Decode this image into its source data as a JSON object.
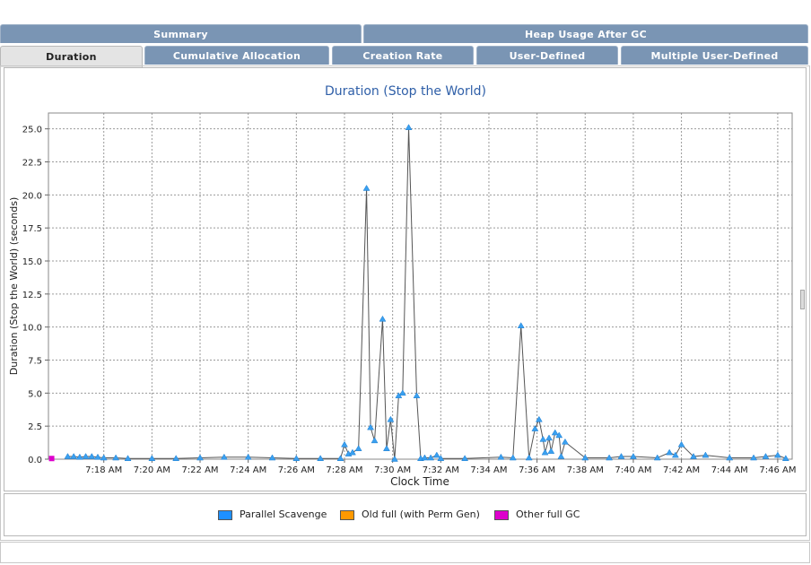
{
  "tabs_row1": [
    {
      "label": "Summary",
      "active": false
    },
    {
      "label": "Heap Usage After GC",
      "active": false
    }
  ],
  "tabs_row2": [
    {
      "label": "Duration",
      "active": true
    },
    {
      "label": "Cumulative Allocation",
      "active": false
    },
    {
      "label": "Creation Rate",
      "active": false
    },
    {
      "label": "User-Defined",
      "active": false
    },
    {
      "label": "Multiple User-Defined",
      "active": false
    }
  ],
  "legend": [
    {
      "label": "Parallel Scavenge",
      "color": "#1e90ff"
    },
    {
      "label": "Old full (with Perm Gen)",
      "color": "#ff9900"
    },
    {
      "label": "Other full GC",
      "color": "#dd00cc"
    }
  ],
  "chart_data": {
    "type": "line",
    "title": "Duration (Stop the World)",
    "xlabel": "Clock Time",
    "ylabel": "Duration (Stop the World)  (seconds)",
    "ylim": [
      0,
      26.2
    ],
    "xlim_minutes": [
      435.7,
      466.6
    ],
    "grid": true,
    "legend_position": "bottom",
    "xticks": [
      "7:18 AM",
      "7:20 AM",
      "7:22 AM",
      "7:24 AM",
      "7:26 AM",
      "7:28 AM",
      "7:30 AM",
      "7:32 AM",
      "7:34 AM",
      "7:36 AM",
      "7:38 AM",
      "7:40 AM",
      "7:42 AM",
      "7:44 AM",
      "7:46 AM"
    ],
    "yticks": [
      "0.0",
      "2.5",
      "5.0",
      "7.5",
      "10.0",
      "12.5",
      "15.0",
      "17.5",
      "20.0",
      "22.5",
      "25.0"
    ],
    "series": [
      {
        "name": "Parallel Scavenge",
        "color": "#1e90ff",
        "x": [
          "7:16:30",
          "7:16:45",
          "7:17:00",
          "7:17:15",
          "7:17:30",
          "7:17:45",
          "7:18:00",
          "7:18:30",
          "7:19:00",
          "7:20:00",
          "7:21:00",
          "7:22:00",
          "7:23:00",
          "7:24:00",
          "7:25:00",
          "7:26:00",
          "7:27:00",
          "7:27:50",
          "7:28:00",
          "7:28:10",
          "7:28:20",
          "7:28:35",
          "7:28:55",
          "7:29:05",
          "7:29:15",
          "7:29:35",
          "7:29:45",
          "7:29:55",
          "7:30:05",
          "7:30:15",
          "7:30:25",
          "7:30:40",
          "7:31:00",
          "7:31:10",
          "7:31:20",
          "7:31:35",
          "7:31:50",
          "7:32:00",
          "7:33:00",
          "7:34:30",
          "7:35:00",
          "7:35:20",
          "7:35:40",
          "7:35:55",
          "7:36:05",
          "7:36:15",
          "7:36:20",
          "7:36:30",
          "7:36:35",
          "7:36:45",
          "7:36:55",
          "7:37:00",
          "7:37:10",
          "7:38:00",
          "7:39:00",
          "7:39:30",
          "7:40:00",
          "7:41:00",
          "7:41:30",
          "7:41:45",
          "7:42:00",
          "7:42:30",
          "7:43:00",
          "7:44:00",
          "7:45:00",
          "7:45:30",
          "7:46:00",
          "7:46:20"
        ],
        "y": [
          0.2,
          0.2,
          0.15,
          0.2,
          0.2,
          0.15,
          0.1,
          0.1,
          0.05,
          0.05,
          0.05,
          0.1,
          0.15,
          0.15,
          0.1,
          0.05,
          0.05,
          0.05,
          1.1,
          0.4,
          0.5,
          0.8,
          20.5,
          2.4,
          1.4,
          10.6,
          0.8,
          3.0,
          0.0,
          4.8,
          5.0,
          25.1,
          4.8,
          0.05,
          0.1,
          0.1,
          0.3,
          0.05,
          0.05,
          0.15,
          0.1,
          10.1,
          0.1,
          2.3,
          3.0,
          1.5,
          0.5,
          1.6,
          0.6,
          2.0,
          1.8,
          0.2,
          1.3,
          0.1,
          0.1,
          0.2,
          0.2,
          0.1,
          0.5,
          0.3,
          1.1,
          0.2,
          0.3,
          0.1,
          0.1,
          0.2,
          0.3,
          0.05
        ]
      },
      {
        "name": "Old full (with Perm Gen)",
        "color": "#ff9900",
        "x": [],
        "y": []
      },
      {
        "name": "Other full GC",
        "color": "#dd00cc",
        "x": [
          "7:15:50"
        ],
        "y": [
          0.05
        ]
      }
    ]
  }
}
